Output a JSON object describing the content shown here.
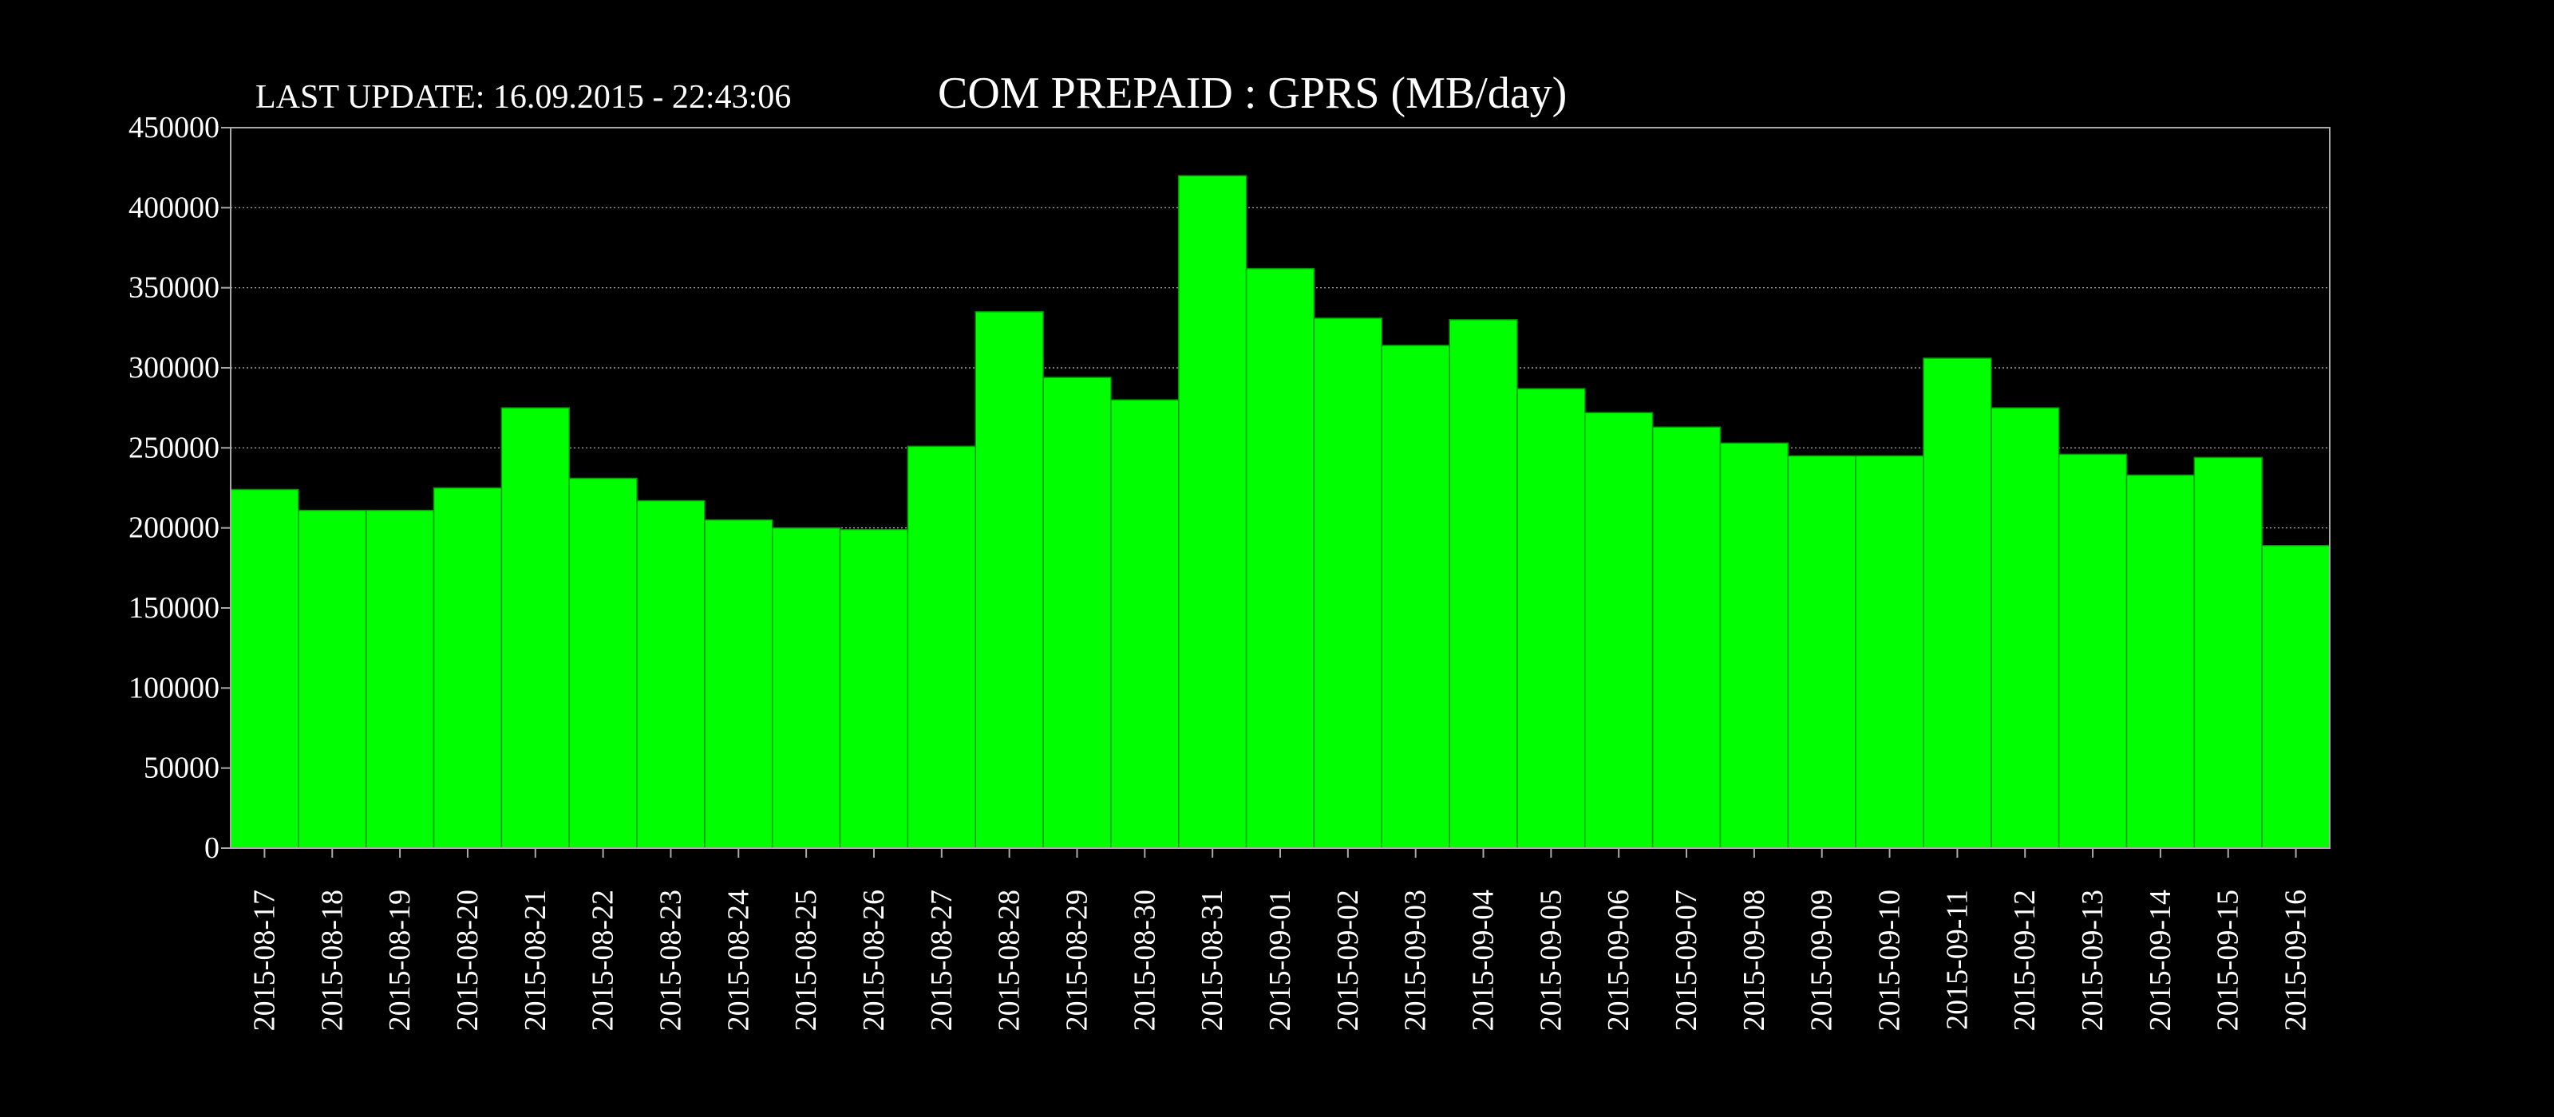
{
  "header": {
    "last_update": "LAST UPDATE: 16.09.2015 - 22:43:06"
  },
  "chart_data": {
    "type": "bar",
    "title": "COM PREPAID : GPRS (MB/day)",
    "xlabel": "",
    "ylabel": "",
    "ylim": [
      0,
      450000
    ],
    "yticks": [
      "0",
      "50000",
      "100000",
      "150000",
      "200000",
      "250000",
      "300000",
      "350000",
      "400000",
      "450000"
    ],
    "grid": true,
    "legend": "none",
    "colors": {
      "background": "#000000",
      "bar": "#00ff00",
      "bar_edge": "#009900",
      "grid": "#ffffff",
      "text": "#ffffff"
    },
    "categories": [
      "2015-08-17",
      "2015-08-18",
      "2015-08-19",
      "2015-08-20",
      "2015-08-21",
      "2015-08-22",
      "2015-08-23",
      "2015-08-24",
      "2015-08-25",
      "2015-08-26",
      "2015-08-27",
      "2015-08-28",
      "2015-08-29",
      "2015-08-30",
      "2015-08-31",
      "2015-09-01",
      "2015-09-02",
      "2015-09-03",
      "2015-09-04",
      "2015-09-05",
      "2015-09-06",
      "2015-09-07",
      "2015-09-08",
      "2015-09-09",
      "2015-09-10",
      "2015-09-11",
      "2015-09-12",
      "2015-09-13",
      "2015-09-14",
      "2015-09-15",
      "2015-09-16"
    ],
    "values": [
      224000,
      211000,
      211000,
      225000,
      275000,
      231000,
      217000,
      205000,
      200000,
      199000,
      251000,
      335000,
      294000,
      280000,
      420000,
      362000,
      331000,
      314000,
      330000,
      287000,
      272000,
      263000,
      253000,
      245000,
      245000,
      306000,
      275000,
      246000,
      233000,
      244000,
      189000
    ]
  }
}
